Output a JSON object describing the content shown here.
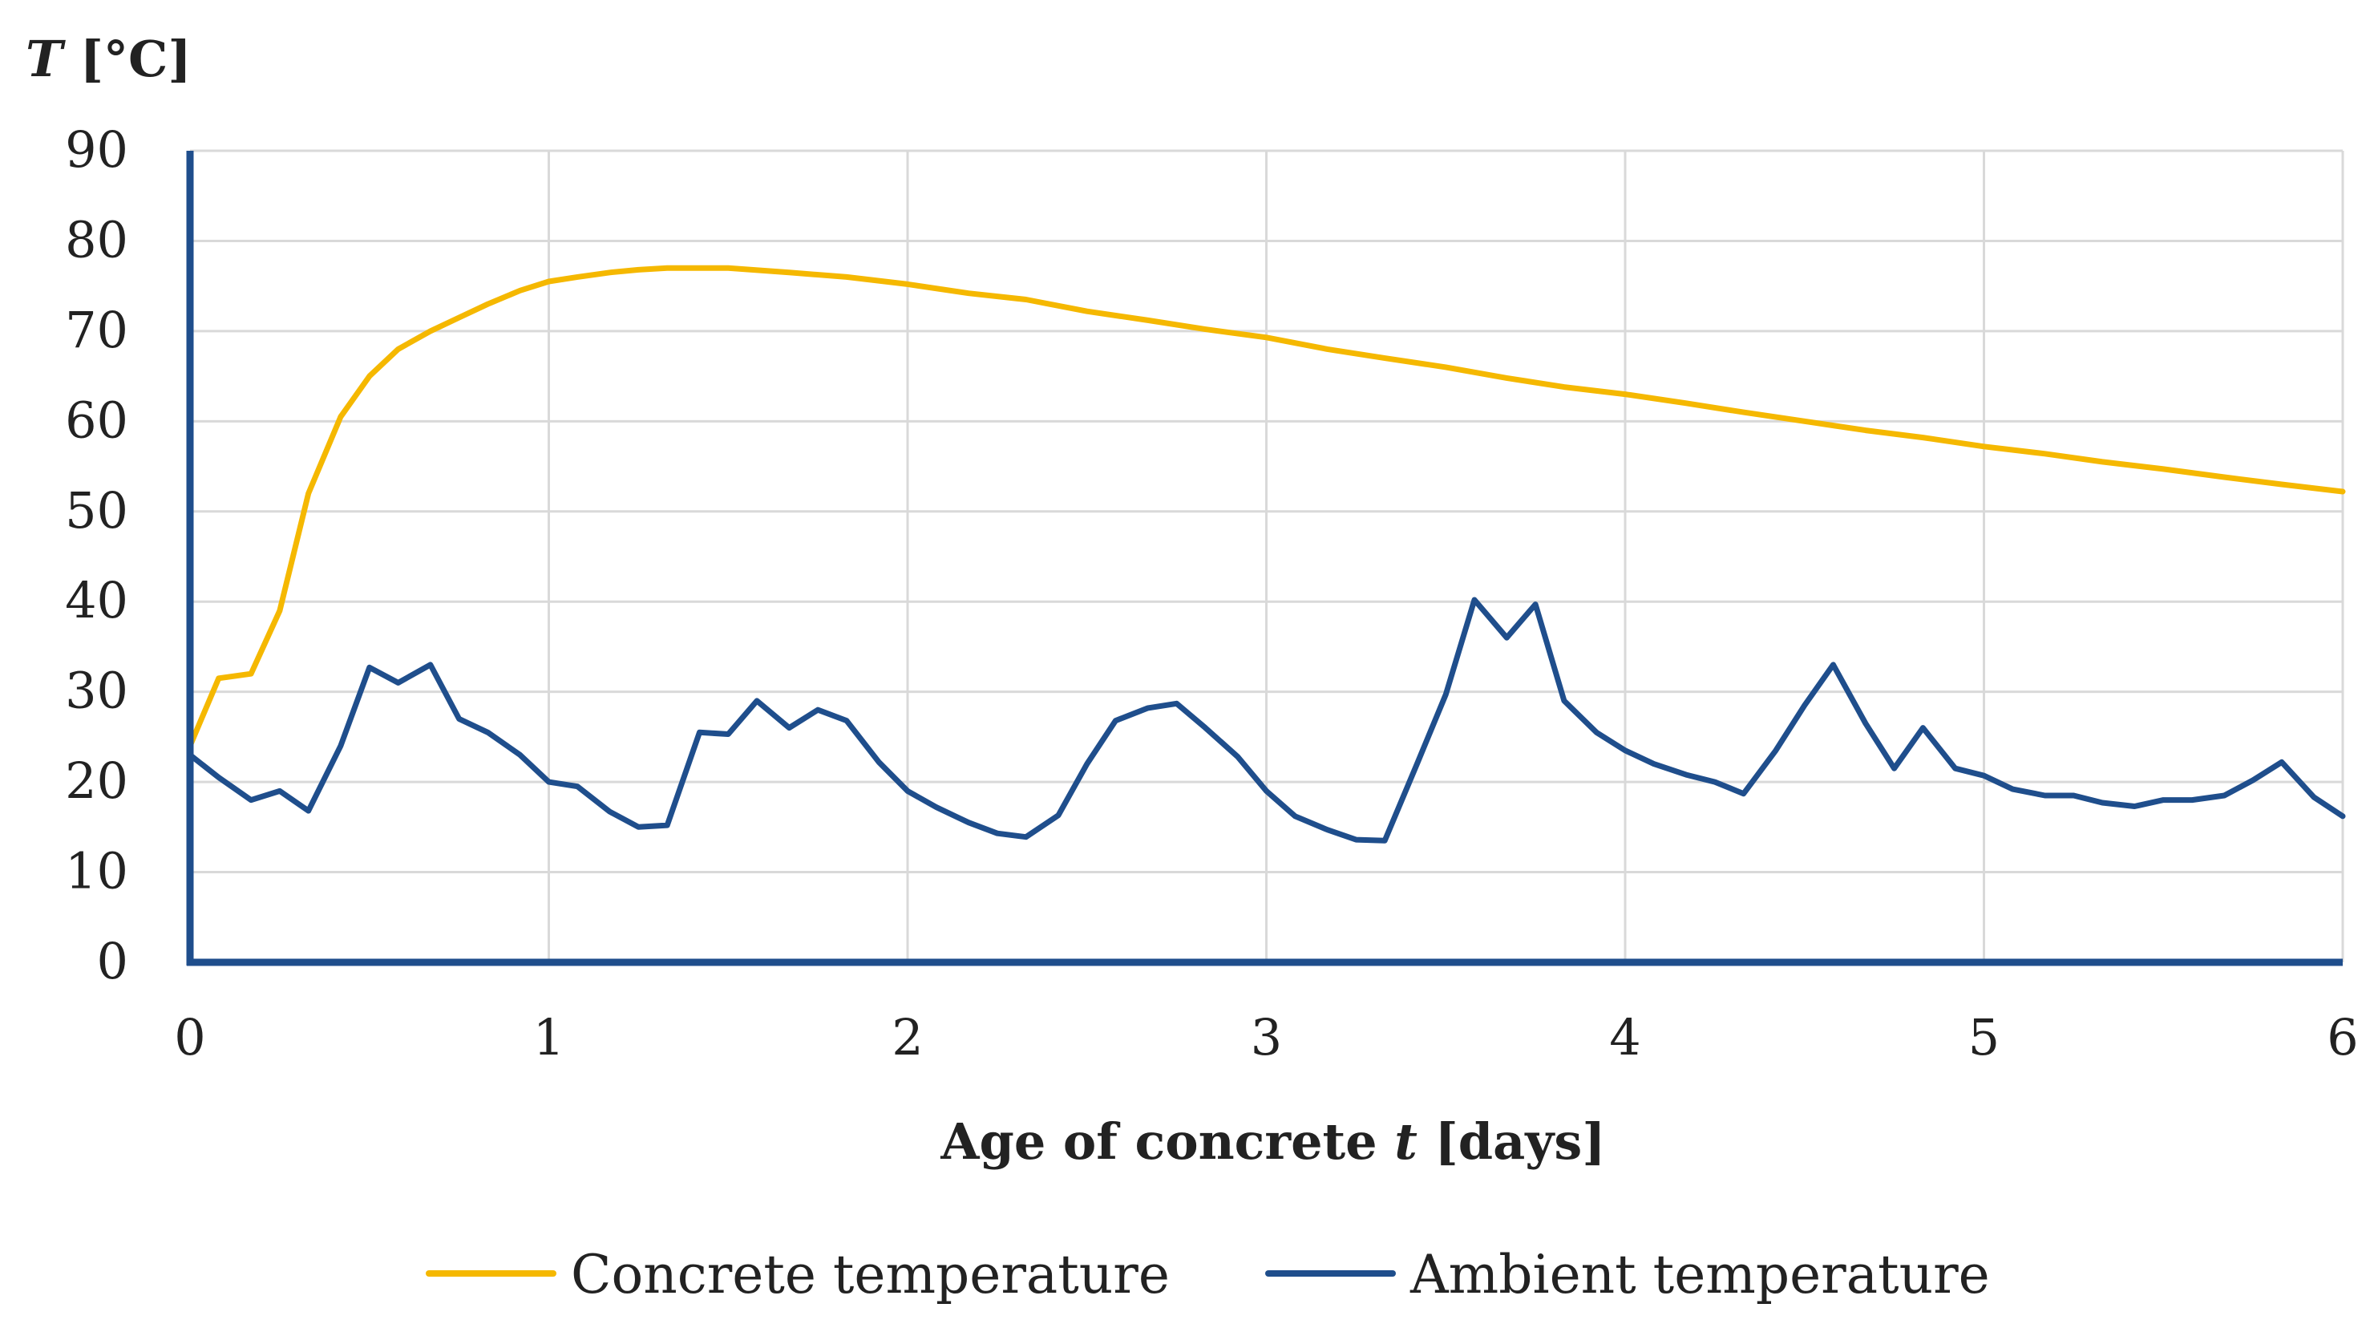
{
  "chart_data": {
    "type": "line",
    "title": "",
    "ylabel_var": "T",
    "ylabel_unit": " [°C]",
    "xlabel_prefix": "Age of concrete ",
    "xlabel_var": "t",
    "xlabel_suffix": " [days]",
    "xlim": [
      0,
      6
    ],
    "ylim": [
      0,
      90
    ],
    "xticks": [
      "0",
      "1",
      "2",
      "3",
      "4",
      "5",
      "6"
    ],
    "yticks": [
      "0",
      "10",
      "20",
      "30",
      "40",
      "50",
      "60",
      "70",
      "80",
      "90"
    ],
    "grid": true,
    "legend_position": "bottom",
    "series": [
      {
        "name": "Concrete temperature",
        "color": "#F5B800",
        "points": [
          [
            0,
            24
          ],
          [
            0.08,
            31.5
          ],
          [
            0.17,
            32
          ],
          [
            0.25,
            39
          ],
          [
            0.33,
            52
          ],
          [
            0.42,
            60.5
          ],
          [
            0.5,
            65
          ],
          [
            0.58,
            68
          ],
          [
            0.67,
            70
          ],
          [
            0.75,
            71.5
          ],
          [
            0.83,
            73
          ],
          [
            0.92,
            74.5
          ],
          [
            1.0,
            75.5
          ],
          [
            1.08,
            76
          ],
          [
            1.17,
            76.5
          ],
          [
            1.25,
            76.8
          ],
          [
            1.33,
            77
          ],
          [
            1.5,
            77
          ],
          [
            1.67,
            76.5
          ],
          [
            1.83,
            76
          ],
          [
            2.0,
            75.2
          ],
          [
            2.17,
            74.2
          ],
          [
            2.33,
            73.5
          ],
          [
            2.5,
            72.2
          ],
          [
            2.67,
            71.2
          ],
          [
            2.83,
            70.2
          ],
          [
            3.0,
            69.3
          ],
          [
            3.17,
            68
          ],
          [
            3.33,
            67
          ],
          [
            3.5,
            66
          ],
          [
            3.67,
            64.8
          ],
          [
            3.83,
            63.8
          ],
          [
            4.0,
            63
          ],
          [
            4.17,
            62
          ],
          [
            4.33,
            61
          ],
          [
            4.5,
            60
          ],
          [
            4.67,
            59
          ],
          [
            4.83,
            58.2
          ],
          [
            5.0,
            57.2
          ],
          [
            5.17,
            56.4
          ],
          [
            5.33,
            55.5
          ],
          [
            5.5,
            54.7
          ],
          [
            5.67,
            53.8
          ],
          [
            5.83,
            53
          ],
          [
            6.0,
            52.2
          ]
        ]
      },
      {
        "name": "Ambient temperature",
        "color": "#1F4E8C",
        "points": [
          [
            0,
            23
          ],
          [
            0.08,
            20.5
          ],
          [
            0.17,
            18
          ],
          [
            0.25,
            19
          ],
          [
            0.33,
            16.8
          ],
          [
            0.42,
            24
          ],
          [
            0.5,
            32.7
          ],
          [
            0.58,
            31
          ],
          [
            0.67,
            33
          ],
          [
            0.75,
            27
          ],
          [
            0.83,
            25.5
          ],
          [
            0.92,
            23
          ],
          [
            1.0,
            20
          ],
          [
            1.08,
            19.5
          ],
          [
            1.17,
            16.7
          ],
          [
            1.25,
            15
          ],
          [
            1.33,
            15.2
          ],
          [
            1.42,
            25.5
          ],
          [
            1.5,
            25.3
          ],
          [
            1.58,
            29
          ],
          [
            1.67,
            26
          ],
          [
            1.75,
            28
          ],
          [
            1.83,
            26.8
          ],
          [
            1.92,
            22.2
          ],
          [
            2.0,
            19
          ],
          [
            2.08,
            17.2
          ],
          [
            2.17,
            15.5
          ],
          [
            2.25,
            14.3
          ],
          [
            2.33,
            13.9
          ],
          [
            2.42,
            16.3
          ],
          [
            2.5,
            22
          ],
          [
            2.58,
            26.8
          ],
          [
            2.67,
            28.2
          ],
          [
            2.75,
            28.7
          ],
          [
            2.83,
            26
          ],
          [
            2.92,
            22.8
          ],
          [
            3.0,
            19
          ],
          [
            3.08,
            16.2
          ],
          [
            3.17,
            14.7
          ],
          [
            3.25,
            13.6
          ],
          [
            3.33,
            13.5
          ],
          [
            3.42,
            22
          ],
          [
            3.5,
            29.7
          ],
          [
            3.58,
            40.2
          ],
          [
            3.67,
            36
          ],
          [
            3.75,
            39.7
          ],
          [
            3.83,
            29
          ],
          [
            3.92,
            25.5
          ],
          [
            4.0,
            23.5
          ],
          [
            4.08,
            22
          ],
          [
            4.17,
            20.8
          ],
          [
            4.25,
            20
          ],
          [
            4.33,
            18.7
          ],
          [
            4.42,
            23.5
          ],
          [
            4.5,
            28.5
          ],
          [
            4.58,
            33
          ],
          [
            4.67,
            26.5
          ],
          [
            4.75,
            21.5
          ],
          [
            4.83,
            26
          ],
          [
            4.92,
            21.5
          ],
          [
            5.0,
            20.7
          ],
          [
            5.08,
            19.2
          ],
          [
            5.17,
            18.5
          ],
          [
            5.25,
            18.5
          ],
          [
            5.33,
            17.7
          ],
          [
            5.42,
            17.3
          ],
          [
            5.5,
            18
          ],
          [
            5.58,
            18
          ],
          [
            5.67,
            18.5
          ],
          [
            5.75,
            20.2
          ],
          [
            5.83,
            22.2
          ],
          [
            5.92,
            18.3
          ],
          [
            6.0,
            16.2
          ]
        ]
      }
    ]
  }
}
